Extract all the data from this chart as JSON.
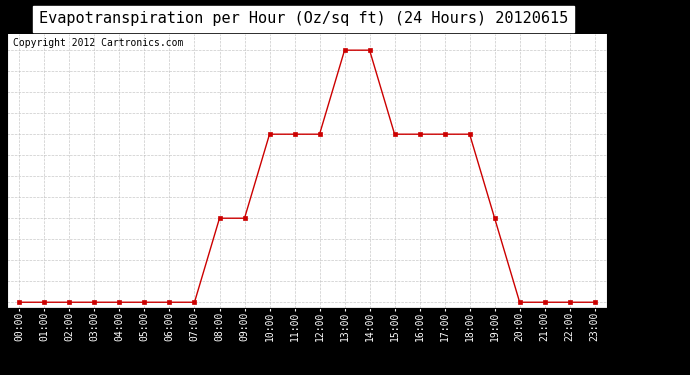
{
  "title": "Evapotranspiration per Hour (Oz/sq ft) (24 Hours) 20120615",
  "copyright_text": "Copyright 2012 Cartronics.com",
  "hours": [
    "00:00",
    "01:00",
    "02:00",
    "03:00",
    "04:00",
    "05:00",
    "06:00",
    "07:00",
    "08:00",
    "09:00",
    "10:00",
    "11:00",
    "12:00",
    "13:00",
    "14:00",
    "15:00",
    "16:00",
    "17:00",
    "18:00",
    "19:00",
    "20:00",
    "21:00",
    "22:00",
    "23:00"
  ],
  "values": [
    0.0,
    0.0,
    0.0,
    0.0,
    0.0,
    0.0,
    0.0,
    0.0,
    0.798,
    0.798,
    1.596,
    1.596,
    1.596,
    2.394,
    2.394,
    1.596,
    1.596,
    1.596,
    1.596,
    0.798,
    0.0,
    0.0,
    0.0,
    0.0
  ],
  "yticks": [
    0.0,
    0.2,
    0.399,
    0.599,
    0.798,
    0.998,
    1.197,
    1.397,
    1.596,
    1.796,
    1.995,
    2.195,
    2.394
  ],
  "line_color": "#cc0000",
  "marker_color": "#cc0000",
  "bg_color": "#000000",
  "plot_bg_color": "#ffffff",
  "grid_color": "#bbbbbb",
  "title_fontsize": 11,
  "copyright_fontsize": 7,
  "tick_fontsize": 7,
  "ylim_min": -0.05,
  "ylim_max": 2.55
}
